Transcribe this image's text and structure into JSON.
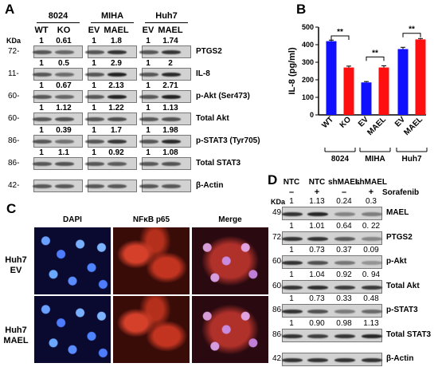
{
  "panel_a": {
    "label": "A",
    "groups": [
      "8024",
      "MIHA",
      "Huh7"
    ],
    "lanes": [
      "WT",
      "KO",
      "EV",
      "MAEL",
      "EV",
      "MAEL"
    ],
    "kda_label": "KDa",
    "rows": [
      {
        "kda": "72-",
        "name": "PTGS2",
        "ratios": [
          "1",
          "0.61",
          "1",
          "1.8",
          "1",
          "1.74"
        ]
      },
      {
        "kda": "11-",
        "name": "IL-8",
        "ratios": [
          "1",
          "0.5",
          "1",
          "2.9",
          "1",
          "2"
        ]
      },
      {
        "kda": "60-",
        "name": "p-Akt (Ser473)",
        "ratios": [
          "1",
          "0.67",
          "1",
          "2.13",
          "1",
          "2.71"
        ]
      },
      {
        "kda": "60-",
        "name": "Total Akt",
        "ratios": [
          "1",
          "1.12",
          "1",
          "1.22",
          "1",
          "1.13"
        ]
      },
      {
        "kda": "86-",
        "name": "p-STAT3 (Tyr705)",
        "ratios": [
          "1",
          "0.39",
          "1",
          "1.7",
          "1",
          "1.98"
        ]
      },
      {
        "kda": "86-",
        "name": "Total STAT3",
        "ratios": [
          "1",
          "1.1",
          "1",
          "0.92",
          "1",
          "1.08"
        ]
      },
      {
        "kda": "42-",
        "name": "β-Actin",
        "ratios": []
      }
    ]
  },
  "panel_b": {
    "label": "B",
    "sig": "**",
    "group_labels": [
      "8024",
      "MIHA",
      "Huh7"
    ],
    "colors": {
      "blue": "#1010ff",
      "red": "#ff1010"
    }
  },
  "chart_data": {
    "type": "bar",
    "categories": [
      "WT",
      "KO",
      "EV",
      "MAEL",
      "EV",
      "MAEL"
    ],
    "values": [
      420,
      270,
      185,
      270,
      375,
      430
    ],
    "errors": [
      6,
      8,
      5,
      10,
      10,
      5
    ],
    "bar_colors": [
      "#1010ff",
      "#ff1010",
      "#1010ff",
      "#ff1010",
      "#1010ff",
      "#ff1010"
    ],
    "ylabel": "IL-8 (pg/ml)",
    "ylim": [
      0,
      500
    ],
    "yticks": [
      0,
      100,
      200,
      300,
      400,
      500
    ]
  },
  "panel_c": {
    "label": "C",
    "columns": [
      "DAPI",
      "NFκB p65",
      "Merge"
    ],
    "rows": [
      "Huh7\nEV",
      "Huh7\nMAEL"
    ]
  },
  "panel_d": {
    "label": "D",
    "lanes": [
      "NTC",
      "NTC",
      "shMAEL",
      "shMAEL"
    ],
    "sorafenib": [
      "–",
      "+",
      "–",
      "+"
    ],
    "sorafenib_label": "Sorafenib",
    "kda_label": "KDa",
    "rows": [
      {
        "kda": "49-",
        "name": "MAEL",
        "ratios": [
          "1",
          "1.13",
          "0.24",
          "0.3"
        ]
      },
      {
        "kda": "72-",
        "name": "PTGS2",
        "ratios": [
          "1",
          "1.01",
          "0.64",
          "0. 22"
        ]
      },
      {
        "kda": "60-",
        "name": "p-Akt",
        "ratios": [
          "1",
          "0.73",
          "0.37",
          "0.09"
        ]
      },
      {
        "kda": "60-",
        "name": "Total Akt",
        "ratios": [
          "1",
          "1.04",
          "0.92",
          "0. 94"
        ]
      },
      {
        "kda": "86-",
        "name": "p-STAT3",
        "ratios": [
          "1",
          "0.73",
          "0.33",
          "0.48"
        ]
      },
      {
        "kda": "86-",
        "name": "Total STAT3",
        "ratios": [
          "1",
          "0.90",
          "0.98",
          "1.13"
        ]
      },
      {
        "kda": "42-",
        "name": "β-Actin",
        "ratios": []
      }
    ]
  }
}
